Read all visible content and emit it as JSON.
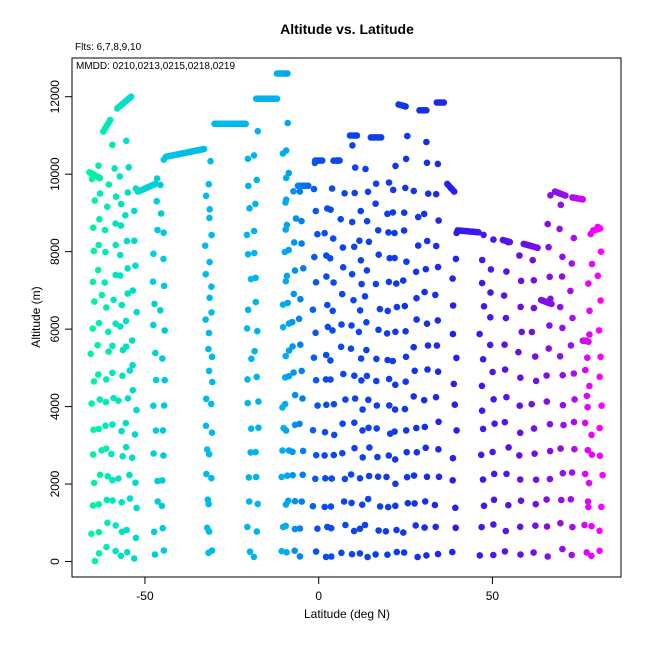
{
  "chart_data": {
    "type": "scatter",
    "title": "Altitude vs. Latitude",
    "subtitle": "Flts: 6,7,8,9,10",
    "annotation": "MMDD: 0210,0213,0215,0218,0219",
    "xlabel": "Latitude (deg N)",
    "ylabel": "Altitude (m)",
    "xlim": [
      -71,
      87
    ],
    "ylim": [
      -400,
      13000
    ],
    "xticks": [
      -50,
      0,
      50
    ],
    "yticks": [
      0,
      2000,
      4000,
      6000,
      8000,
      10000,
      12000
    ],
    "grid": false,
    "legend": "none",
    "color_scale": {
      "by": "latitude",
      "stops": [
        {
          "x": -66,
          "color": "#00f5a0"
        },
        {
          "x": -58,
          "color": "#00e5c0"
        },
        {
          "x": -40,
          "color": "#00c0e8"
        },
        {
          "x": -10,
          "color": "#00b0f0"
        },
        {
          "x": 0,
          "color": "#0a4ef0"
        },
        {
          "x": 30,
          "color": "#1432e8"
        },
        {
          "x": 40,
          "color": "#2a1cf0"
        },
        {
          "x": 60,
          "color": "#6a10e8"
        },
        {
          "x": 72,
          "color": "#9a10e8"
        },
        {
          "x": 80,
          "color": "#ff00ff"
        }
      ]
    },
    "level_runs": [
      {
        "x0": -66,
        "x1": -63,
        "y0": 10050,
        "y1": 9900
      },
      {
        "x0": -62,
        "x1": -60,
        "y0": 11100,
        "y1": 11400
      },
      {
        "x0": -58,
        "x1": -54,
        "y0": 11700,
        "y1": 12000
      },
      {
        "x0": -52,
        "x1": -47,
        "y0": 9550,
        "y1": 9750
      },
      {
        "x0": -44,
        "x1": -33,
        "y0": 10450,
        "y1": 10650
      },
      {
        "x0": -30,
        "x1": -21,
        "y0": 11300,
        "y1": 11300
      },
      {
        "x0": -18,
        "x1": -12,
        "y0": 11950,
        "y1": 11950
      },
      {
        "x0": -12,
        "x1": -9,
        "y0": 12600,
        "y1": 12600
      },
      {
        "x0": -6,
        "x1": -3,
        "y0": 9700,
        "y1": 9700
      },
      {
        "x0": -1,
        "x1": 1,
        "y0": 10350,
        "y1": 10350
      },
      {
        "x0": 5,
        "x1": 6,
        "y0": 10350,
        "y1": 10350
      },
      {
        "x0": 9,
        "x1": 11,
        "y0": 11000,
        "y1": 11000
      },
      {
        "x0": 15,
        "x1": 18,
        "y0": 10950,
        "y1": 10950
      },
      {
        "x0": 23,
        "x1": 25,
        "y0": 11800,
        "y1": 11750
      },
      {
        "x0": 29,
        "x1": 31,
        "y0": 11650,
        "y1": 11650
      },
      {
        "x0": 34,
        "x1": 36,
        "y0": 11850,
        "y1": 11850
      },
      {
        "x0": 37,
        "x1": 39,
        "y0": 9750,
        "y1": 9550
      },
      {
        "x0": 40,
        "x1": 46,
        "y0": 8550,
        "y1": 8500
      },
      {
        "x0": 53,
        "x1": 55,
        "y0": 8300,
        "y1": 8250
      },
      {
        "x0": 59,
        "x1": 63,
        "y0": 8200,
        "y1": 8100
      },
      {
        "x0": 64,
        "x1": 67,
        "y0": 6750,
        "y1": 6650
      },
      {
        "x0": 68,
        "x1": 71,
        "y0": 9550,
        "y1": 9450
      },
      {
        "x0": 73,
        "x1": 76,
        "y0": 9400,
        "y1": 9350
      },
      {
        "x0": 76,
        "x1": 77,
        "y0": 5700,
        "y1": 5700
      },
      {
        "x0": 79,
        "x1": 81,
        "y0": 8550,
        "y1": 8600
      }
    ],
    "profile_columns": [
      {
        "x": -65,
        "y0": 100,
        "y1": 9900
      },
      {
        "x": -63,
        "y0": 150,
        "y1": 10200
      },
      {
        "x": -61,
        "y0": 300,
        "y1": 9800
      },
      {
        "x": -59,
        "y0": 200,
        "y1": 10800
      },
      {
        "x": -57,
        "y0": 200,
        "y1": 9900
      },
      {
        "x": -55,
        "y0": 200,
        "y1": 10900
      },
      {
        "x": -53,
        "y0": 50,
        "y1": 9600
      },
      {
        "x": -47,
        "y0": 200,
        "y1": 9900
      },
      {
        "x": -45,
        "y0": 200,
        "y1": 10300
      },
      {
        "x": -32,
        "y0": 200,
        "y1": 9500
      },
      {
        "x": -31,
        "y0": 200,
        "y1": 10300
      },
      {
        "x": -20,
        "y0": 200,
        "y1": 10400
      },
      {
        "x": -18,
        "y0": 200,
        "y1": 11200
      },
      {
        "x": -10,
        "y0": 200,
        "y1": 10500
      },
      {
        "x": -9,
        "y0": 200,
        "y1": 11300
      },
      {
        "x": -7,
        "y0": 200,
        "y1": 9600
      },
      {
        "x": -5,
        "y0": 200,
        "y1": 9500
      },
      {
        "x": -1,
        "y0": 200,
        "y1": 10300
      },
      {
        "x": 2,
        "y0": 200,
        "y1": 9200
      },
      {
        "x": 4,
        "y0": 200,
        "y1": 10300
      },
      {
        "x": 7,
        "y0": 200,
        "y1": 9500
      },
      {
        "x": 10,
        "y0": 200,
        "y1": 10800
      },
      {
        "x": 12,
        "y0": 200,
        "y1": 9000
      },
      {
        "x": 14,
        "y0": 200,
        "y1": 10200
      },
      {
        "x": 17,
        "y0": 200,
        "y1": 9800
      },
      {
        "x": 20,
        "y0": 200,
        "y1": 9700
      },
      {
        "x": 22,
        "y0": 200,
        "y1": 10300
      },
      {
        "x": 25,
        "y0": 200,
        "y1": 11000
      },
      {
        "x": 28,
        "y0": 200,
        "y1": 9500
      },
      {
        "x": 31,
        "y0": 200,
        "y1": 10900
      },
      {
        "x": 34,
        "y0": 200,
        "y1": 10200
      },
      {
        "x": 39,
        "y0": 200,
        "y1": 8500
      },
      {
        "x": 47,
        "y0": 200,
        "y1": 8400
      },
      {
        "x": 50,
        "y0": 200,
        "y1": 8300
      },
      {
        "x": 54,
        "y0": 200,
        "y1": 8200
      },
      {
        "x": 58,
        "y0": 200,
        "y1": 7900
      },
      {
        "x": 62,
        "y0": 300,
        "y1": 7800
      },
      {
        "x": 66,
        "y0": 200,
        "y1": 9400
      },
      {
        "x": 70,
        "y0": 300,
        "y1": 9200
      },
      {
        "x": 73,
        "y0": 200,
        "y1": 8300
      },
      {
        "x": 77,
        "y0": 200,
        "y1": 5600
      },
      {
        "x": 78,
        "y0": 200,
        "y1": 8400
      },
      {
        "x": 81,
        "y0": 200,
        "y1": 8600
      }
    ]
  }
}
